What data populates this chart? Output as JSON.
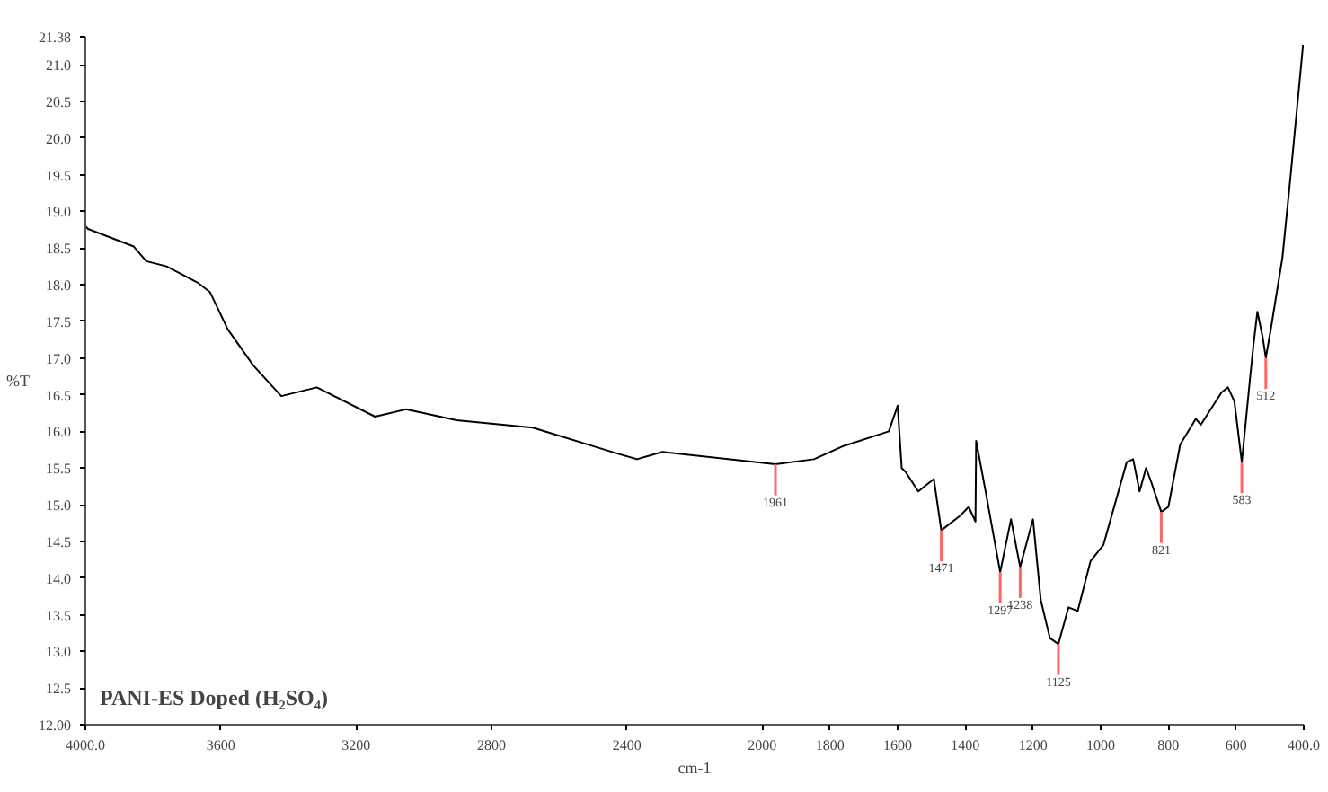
{
  "chart_data": {
    "type": "line",
    "title": "PANI-ES Doped (H₂SO₄)",
    "xlabel": "cm-1",
    "ylabel": "%T",
    "x": [
      4000,
      3992,
      3857,
      3820,
      3760,
      3669,
      3632,
      3579,
      3504,
      3421,
      3316,
      3144,
      3053,
      2903,
      2678,
      2430,
      2370,
      2295,
      1961,
      1847,
      1760,
      1626,
      1600,
      1588,
      1577,
      1539,
      1493,
      1471,
      1415,
      1390,
      1370,
      1368,
      1340,
      1297,
      1265,
      1238,
      1200,
      1177,
      1150,
      1125,
      1095,
      1068,
      1030,
      992,
      923,
      904,
      885,
      866,
      850,
      821,
      800,
      765,
      719,
      704,
      643,
      624,
      605,
      583,
      557,
      548,
      537,
      522,
      512,
      497,
      463,
      440,
      402
    ],
    "series": [
      {
        "color": "#000000",
        "values": [
          18.8,
          18.76,
          18.52,
          18.32,
          18.25,
          18.03,
          17.9,
          17.39,
          16.9,
          16.48,
          16.6,
          16.2,
          16.3,
          16.15,
          16.05,
          15.7,
          15.62,
          15.72,
          15.55,
          15.62,
          15.8,
          16.0,
          16.35,
          15.5,
          15.45,
          15.18,
          15.35,
          14.65,
          14.85,
          14.97,
          14.77,
          15.87,
          15.18,
          14.08,
          14.8,
          14.15,
          14.8,
          13.7,
          13.18,
          13.1,
          13.6,
          13.55,
          14.23,
          14.45,
          15.58,
          15.62,
          15.18,
          15.5,
          15.3,
          14.9,
          14.97,
          15.82,
          16.17,
          16.09,
          16.53,
          16.6,
          16.41,
          15.58,
          16.8,
          17.2,
          17.63,
          17.3,
          17.0,
          17.4,
          18.37,
          19.43,
          21.27
        ]
      }
    ],
    "annotations": [
      {
        "text": "1961",
        "x": 1961,
        "y": 15.55
      },
      {
        "text": "1471",
        "x": 1471,
        "y": 14.65
      },
      {
        "text": "1297",
        "x": 1297,
        "y": 14.08
      },
      {
        "text": "1238",
        "x": 1238,
        "y": 14.15
      },
      {
        "text": "1125",
        "x": 1125,
        "y": 13.1
      },
      {
        "text": "821",
        "x": 821,
        "y": 14.9
      },
      {
        "text": "583",
        "x": 583,
        "y": 15.58
      },
      {
        "text": "512",
        "x": 512,
        "y": 17.0
      }
    ],
    "xlim": [
      4000,
      400
    ],
    "xticks": [
      {
        "value": 4000,
        "label": "4000.0"
      },
      3600,
      3200,
      2800,
      2400,
      2000,
      1800,
      1600,
      1400,
      1200,
      1000,
      800,
      600,
      {
        "value": 400,
        "label": "400.0"
      }
    ],
    "ylim": [
      12,
      21.38
    ],
    "yticks": [
      {
        "value": 12,
        "label": "12.00"
      },
      {
        "value": 12.5,
        "label": "12.5"
      },
      {
        "value": 13,
        "label": "13.0"
      },
      {
        "value": 13.5,
        "label": "13.5"
      },
      {
        "value": 14,
        "label": "14.0"
      },
      {
        "value": 14.5,
        "label": "14.5"
      },
      {
        "value": 15,
        "label": "15.0"
      },
      {
        "value": 15.5,
        "label": "15.5"
      },
      {
        "value": 16,
        "label": "16.0"
      },
      {
        "value": 16.5,
        "label": "16.5"
      },
      {
        "value": 17,
        "label": "17.0"
      },
      {
        "value": 17.5,
        "label": "17.5"
      },
      {
        "value": 18,
        "label": "18.0"
      },
      {
        "value": 18.5,
        "label": "18.5"
      },
      {
        "value": 19,
        "label": "19.0"
      },
      {
        "value": 19.5,
        "label": "19.5"
      },
      {
        "value": 20,
        "label": "20.0"
      },
      {
        "value": 20.5,
        "label": "20.5"
      },
      {
        "value": 21,
        "label": "21.0"
      },
      {
        "value": 21.38,
        "label": "21.38"
      }
    ],
    "grid": false,
    "marker": "none",
    "line_style": "solid"
  }
}
